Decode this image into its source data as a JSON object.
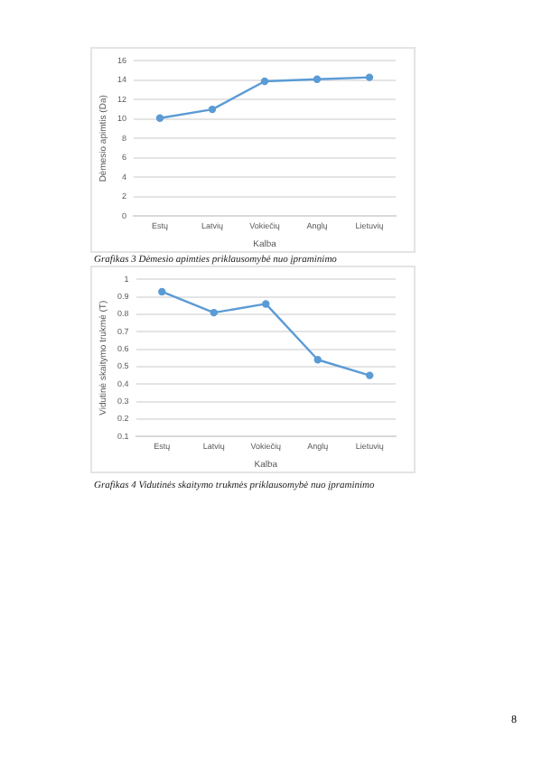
{
  "chart_data": [
    {
      "type": "line",
      "xlabel": "Kalba",
      "ylabel": "Dėmesio apimtis (Da)",
      "categories": [
        "Estų",
        "Latvių",
        "Vokiečių",
        "Anglų",
        "Lietuvių"
      ],
      "series": [
        {
          "color": "#5b9bd5",
          "values": [
            10.1,
            11.0,
            13.9,
            14.1,
            14.3
          ]
        }
      ],
      "ylim": [
        0,
        16
      ],
      "yticks": [
        0,
        2,
        4,
        6,
        8,
        10,
        12,
        14,
        16
      ],
      "grid": "y",
      "legend": false,
      "marker": "circle",
      "line_style": "solid",
      "annotations": [
        "Grafikas 3 Dėmesio apimties priklausomybė nuo įpraminimo"
      ]
    },
    {
      "type": "line",
      "xlabel": "Kalba",
      "ylabel": "Vidutinė skaitymo trukmė (T)",
      "categories": [
        "Estų",
        "Latvių",
        "Vokiečių",
        "Anglų",
        "Lietuvių"
      ],
      "series": [
        {
          "color": "#5b9bd5",
          "values": [
            0.93,
            0.81,
            0.86,
            0.54,
            0.45
          ]
        }
      ],
      "ylim": [
        0.1,
        1
      ],
      "yticks": [
        0.1,
        0.2,
        0.3,
        0.4,
        0.5,
        0.6,
        0.7,
        0.8,
        0.9,
        1
      ],
      "grid": "y",
      "legend": false,
      "marker": "circle",
      "line_style": "solid",
      "annotations": [
        "Grafikas 4 Vidutinės skaitymo trukmės priklausomybė nuo įpraminimo",
        "8"
      ]
    }
  ]
}
